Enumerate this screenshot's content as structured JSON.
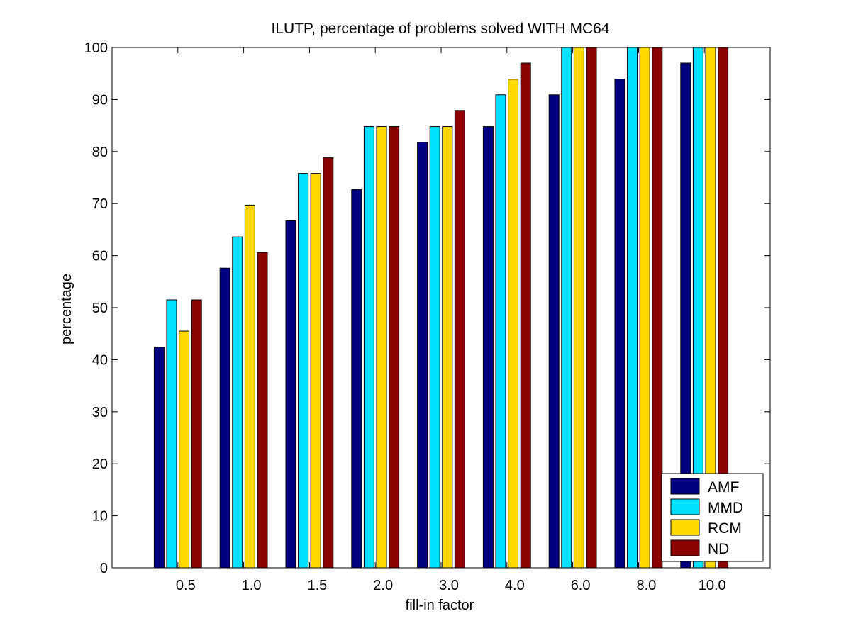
{
  "chart_data": {
    "type": "bar",
    "title": "ILUTP, percentage of problems solved WITH MC64",
    "xlabel": "fill-in factor",
    "ylabel": "percentage",
    "ylim": [
      0,
      100
    ],
    "yticks": [
      0,
      10,
      20,
      30,
      40,
      50,
      60,
      70,
      80,
      90,
      100
    ],
    "grid": false,
    "legend_position": "bottom-right",
    "categories": [
      "0.5",
      "1.0",
      "1.5",
      "2.0",
      "3.0",
      "4.0",
      "6.0",
      "8.0",
      "10.0"
    ],
    "series": [
      {
        "name": "AMF",
        "color": "#000080",
        "values": [
          42.4,
          57.6,
          66.7,
          72.7,
          81.8,
          84.8,
          90.9,
          93.9,
          97.0
        ]
      },
      {
        "name": "MMD",
        "color": "#00e0ff",
        "values": [
          51.5,
          63.6,
          75.8,
          84.8,
          84.8,
          90.9,
          100,
          100,
          100
        ]
      },
      {
        "name": "RCM",
        "color": "#ffd800",
        "values": [
          45.5,
          69.7,
          75.8,
          84.8,
          84.8,
          93.9,
          100,
          100,
          100
        ]
      },
      {
        "name": "ND",
        "color": "#8b0000",
        "values": [
          51.5,
          60.6,
          78.8,
          84.8,
          87.9,
          97.0,
          100,
          100,
          100
        ]
      }
    ]
  }
}
